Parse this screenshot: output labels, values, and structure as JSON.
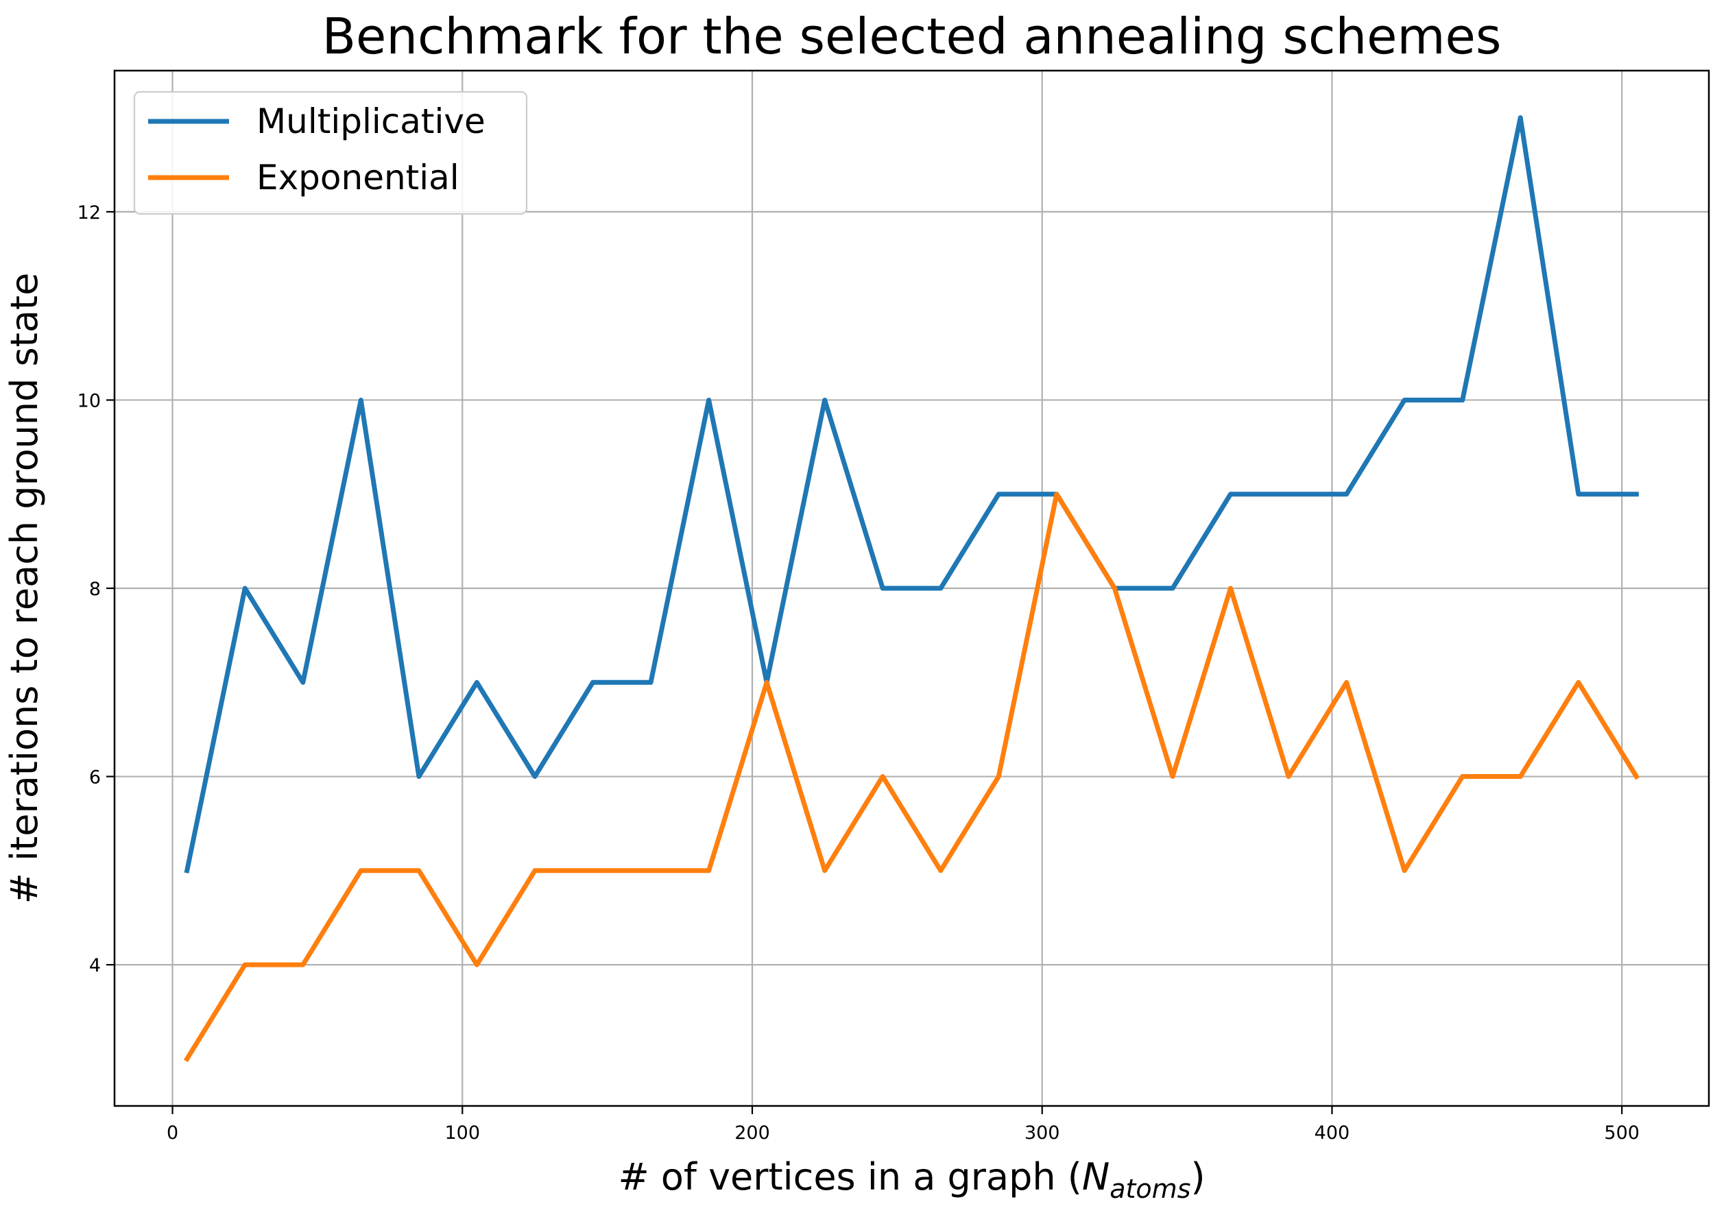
{
  "chart_data": {
    "type": "line",
    "title": "Benchmark for the selected annealing schemes",
    "xlabel_prefix": "# of vertices in a graph (",
    "xlabel_symbol": "N",
    "xlabel_subscript": "atoms",
    "xlabel_suffix": ")",
    "ylabel": "# iterations to reach ground state",
    "x": [
      5,
      25,
      45,
      65,
      85,
      105,
      125,
      145,
      165,
      185,
      205,
      225,
      245,
      265,
      285,
      305,
      325,
      345,
      365,
      385,
      405,
      425,
      445,
      465,
      485,
      505
    ],
    "series": [
      {
        "name": "Multiplicative",
        "color": "#1f77b4",
        "values": [
          5,
          8,
          7,
          10,
          6,
          7,
          6,
          7,
          7,
          10,
          7,
          10,
          8,
          8,
          9,
          9,
          8,
          8,
          9,
          9,
          9,
          10,
          10,
          13,
          9,
          9
        ]
      },
      {
        "name": "Exponential",
        "color": "#ff7f0e",
        "values": [
          3,
          4,
          4,
          5,
          5,
          4,
          5,
          5,
          5,
          5,
          7,
          5,
          6,
          5,
          6,
          9,
          8,
          6,
          8,
          6,
          7,
          5,
          6,
          6,
          7,
          6
        ]
      }
    ],
    "xlim": [
      -20,
      530
    ],
    "ylim": [
      2.5,
      13.5
    ],
    "xticks": [
      "0",
      "100",
      "200",
      "300",
      "400",
      "500"
    ],
    "yticks": [
      "4",
      "6",
      "8",
      "10",
      "12"
    ],
    "grid": true,
    "legend_position": "top-left"
  }
}
